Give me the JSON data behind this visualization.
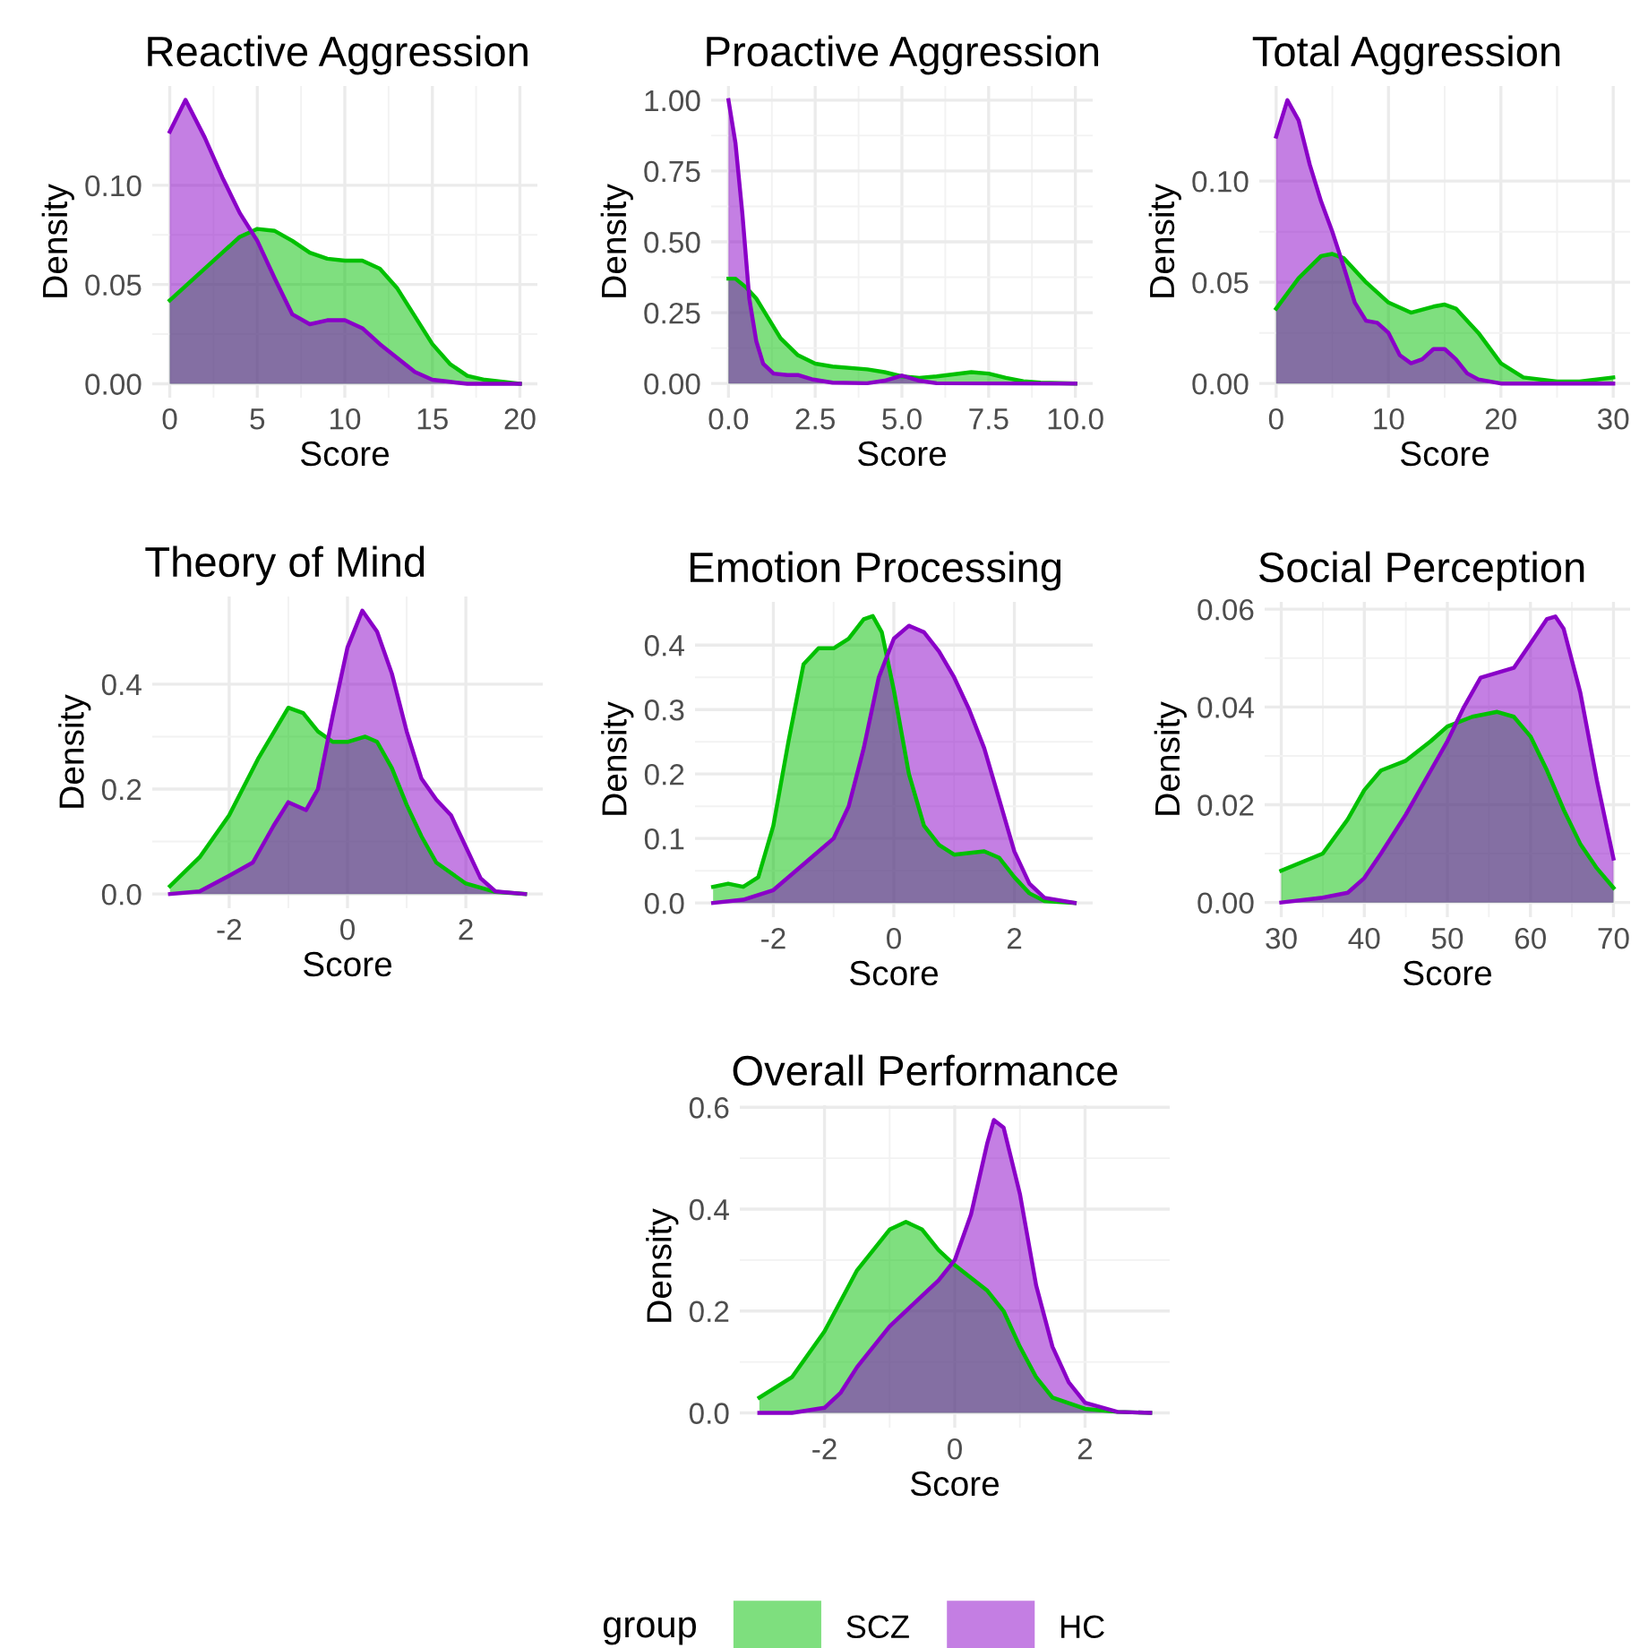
{
  "chart_data": [
    {
      "type": "area",
      "title": "Reactive Aggression",
      "xlabel": "Score",
      "ylabel": "Density",
      "xlim": [
        -1,
        21
      ],
      "xticks": [
        0,
        5,
        10,
        15,
        20
      ],
      "ylim": [
        -0.007,
        0.15
      ],
      "yticks": [
        {
          "value": 0,
          "label": "0.00"
        },
        {
          "value": 0.05,
          "label": "0.05"
        },
        {
          "value": 0.1,
          "label": "0.10"
        }
      ],
      "grid": true,
      "series": [
        {
          "color": "#00c000",
          "x": [
            0,
            1,
            2,
            3,
            4,
            5,
            6,
            7,
            8,
            9,
            10,
            11,
            12,
            13,
            14,
            15,
            16,
            17,
            18,
            19,
            20
          ],
          "values": [
            0.042,
            0.05,
            0.058,
            0.066,
            0.074,
            0.078,
            0.077,
            0.072,
            0.066,
            0.063,
            0.062,
            0.062,
            0.058,
            0.048,
            0.034,
            0.02,
            0.01,
            0.004,
            0.002,
            0.001,
            0
          ]
        },
        {
          "color": "#8a00c8",
          "x": [
            0,
            0.9,
            2,
            3,
            4,
            5,
            6,
            7,
            8,
            9,
            10,
            11,
            12,
            13,
            14,
            15,
            16,
            17,
            20
          ],
          "values": [
            0.127,
            0.143,
            0.124,
            0.104,
            0.086,
            0.072,
            0.053,
            0.035,
            0.03,
            0.032,
            0.032,
            0.028,
            0.02,
            0.013,
            0.006,
            0.002,
            0.001,
            0,
            0
          ]
        }
      ]
    },
    {
      "type": "area",
      "title": "Proactive Aggression",
      "xlabel": "Score",
      "ylabel": "Density",
      "xlim": [
        -0.5,
        10.5
      ],
      "xticks": [
        {
          "value": 0,
          "label": "0.0"
        },
        {
          "value": 2.5,
          "label": "2.5"
        },
        {
          "value": 5,
          "label": "5.0"
        },
        {
          "value": 7.5,
          "label": "7.5"
        },
        {
          "value": 10,
          "label": "10.0"
        }
      ],
      "ylim": [
        -0.05,
        1.05
      ],
      "yticks": [
        {
          "value": 0,
          "label": "0.00"
        },
        {
          "value": 0.25,
          "label": "0.25"
        },
        {
          "value": 0.5,
          "label": "0.50"
        },
        {
          "value": 0.75,
          "label": "0.75"
        },
        {
          "value": 1,
          "label": "1.00"
        }
      ],
      "grid": true,
      "series": [
        {
          "color": "#00c000",
          "x": [
            0,
            0.2,
            0.5,
            0.8,
            1.0,
            1.5,
            2.0,
            2.5,
            3,
            4,
            4.5,
            5,
            5.5,
            6,
            7,
            7.5,
            8,
            8.5,
            9,
            10
          ],
          "values": [
            0.37,
            0.37,
            0.34,
            0.3,
            0.26,
            0.16,
            0.1,
            0.07,
            0.06,
            0.05,
            0.04,
            0.025,
            0.02,
            0.025,
            0.04,
            0.035,
            0.02,
            0.008,
            0.003,
            0
          ]
        },
        {
          "color": "#8a00c8",
          "x": [
            0,
            0.2,
            0.4,
            0.6,
            0.8,
            1.0,
            1.3,
            1.7,
            2.0,
            2.4,
            3,
            4,
            4.5,
            5,
            5.5,
            6,
            10
          ],
          "values": [
            1.0,
            0.85,
            0.6,
            0.3,
            0.15,
            0.07,
            0.035,
            0.03,
            0.03,
            0.015,
            0.003,
            0.001,
            0.01,
            0.028,
            0.01,
            0.001,
            0
          ]
        }
      ]
    },
    {
      "type": "area",
      "title": "Total Aggression",
      "xlabel": "Score",
      "ylabel": "Density",
      "xlim": [
        -1.5,
        31.5
      ],
      "xticks": [
        0,
        10,
        20,
        30
      ],
      "ylim": [
        -0.007,
        0.147
      ],
      "yticks": [
        {
          "value": 0,
          "label": "0.00"
        },
        {
          "value": 0.05,
          "label": "0.05"
        },
        {
          "value": 0.1,
          "label": "0.10"
        }
      ],
      "grid": true,
      "series": [
        {
          "color": "#00c000",
          "x": [
            0,
            2,
            4,
            5,
            6,
            8,
            10,
            12,
            14,
            15,
            16,
            18,
            20,
            22,
            25,
            27,
            30
          ],
          "values": [
            0.037,
            0.052,
            0.063,
            0.064,
            0.062,
            0.05,
            0.04,
            0.035,
            0.038,
            0.039,
            0.037,
            0.025,
            0.01,
            0.003,
            0.001,
            0.001,
            0.003
          ]
        },
        {
          "color": "#8a00c8",
          "x": [
            0,
            1,
            2,
            3,
            4,
            5,
            6,
            7,
            8,
            9,
            10,
            11,
            12,
            13,
            14,
            15,
            16,
            17,
            18,
            19,
            20,
            30
          ],
          "values": [
            0.122,
            0.14,
            0.13,
            0.108,
            0.09,
            0.075,
            0.058,
            0.04,
            0.031,
            0.03,
            0.025,
            0.014,
            0.01,
            0.012,
            0.017,
            0.017,
            0.012,
            0.005,
            0.002,
            0.001,
            0,
            0
          ]
        }
      ]
    },
    {
      "type": "area",
      "title": "Theory of Mind",
      "xlabel": "Score",
      "ylabel": "Density",
      "xlim": [
        -3.3,
        3.3
      ],
      "xticks": [
        {
          "value": -2,
          "label": "-2"
        },
        0,
        2
      ],
      "ylim": [
        -0.027,
        0.567
      ],
      "yticks": [
        {
          "value": 0,
          "label": "0.0"
        },
        0.2,
        0.4
      ],
      "grid": true,
      "series": [
        {
          "color": "#00c000",
          "x": [
            -3,
            -2.5,
            -2,
            -1.5,
            -1.0,
            -0.75,
            -0.5,
            -0.25,
            0,
            0.3,
            0.5,
            0.75,
            1,
            1.25,
            1.5,
            2,
            2.5,
            3
          ],
          "values": [
            0.015,
            0.07,
            0.15,
            0.26,
            0.355,
            0.345,
            0.31,
            0.29,
            0.29,
            0.3,
            0.29,
            0.24,
            0.17,
            0.11,
            0.06,
            0.02,
            0.004,
            0
          ]
        },
        {
          "color": "#8a00c8",
          "x": [
            -3,
            -2.5,
            -2,
            -1.6,
            -1.25,
            -1.0,
            -0.7,
            -0.5,
            -0.25,
            0,
            0.25,
            0.5,
            0.75,
            1.0,
            1.25,
            1.5,
            1.75,
            2.0,
            2.25,
            2.5,
            3
          ],
          "values": [
            0,
            0.005,
            0.035,
            0.06,
            0.13,
            0.175,
            0.16,
            0.2,
            0.34,
            0.47,
            0.54,
            0.5,
            0.42,
            0.31,
            0.22,
            0.18,
            0.15,
            0.09,
            0.03,
            0.005,
            0
          ]
        }
      ]
    },
    {
      "type": "area",
      "title": "Emotion Processing",
      "xlabel": "Score",
      "ylabel": "Density",
      "xlim": [
        -3.3,
        3.3
      ],
      "xticks": [
        {
          "value": -2,
          "label": "-2"
        },
        0,
        2
      ],
      "ylim": [
        -0.022,
        0.467
      ],
      "yticks": [
        {
          "value": 0,
          "label": "0.0"
        },
        0.1,
        0.2,
        0.3,
        0.4
      ],
      "grid": true,
      "series": [
        {
          "color": "#00c000",
          "x": [
            -3,
            -2.75,
            -2.5,
            -2.25,
            -2.0,
            -1.75,
            -1.5,
            -1.25,
            -1.0,
            -0.75,
            -0.5,
            -0.35,
            -0.2,
            0,
            0.25,
            0.5,
            0.75,
            1.0,
            1.5,
            1.75,
            2.0,
            2.25,
            2.5,
            3
          ],
          "values": [
            0.025,
            0.03,
            0.025,
            0.04,
            0.12,
            0.25,
            0.37,
            0.395,
            0.395,
            0.41,
            0.44,
            0.445,
            0.42,
            0.33,
            0.2,
            0.12,
            0.09,
            0.075,
            0.08,
            0.07,
            0.04,
            0.015,
            0.003,
            0
          ]
        },
        {
          "color": "#8a00c8",
          "x": [
            -3,
            -2.5,
            -2,
            -1.5,
            -1.0,
            -0.75,
            -0.5,
            -0.25,
            0,
            0.25,
            0.5,
            0.75,
            1.0,
            1.25,
            1.5,
            1.75,
            2.0,
            2.25,
            2.5,
            3
          ],
          "values": [
            0,
            0.005,
            0.02,
            0.06,
            0.1,
            0.15,
            0.24,
            0.35,
            0.41,
            0.43,
            0.42,
            0.39,
            0.35,
            0.3,
            0.24,
            0.16,
            0.08,
            0.03,
            0.008,
            0
          ]
        }
      ]
    },
    {
      "type": "area",
      "title": "Social Perception",
      "xlabel": "Score",
      "ylabel": "Density",
      "xlim": [
        28,
        72
      ],
      "xticks": [
        30,
        40,
        50,
        60,
        70
      ],
      "ylim": [
        -0.003,
        0.0615
      ],
      "yticks": [
        {
          "value": 0,
          "label": "0.00"
        },
        {
          "value": 0.02,
          "label": "0.02"
        },
        {
          "value": 0.04,
          "label": "0.04"
        },
        {
          "value": 0.06,
          "label": "0.06"
        }
      ],
      "grid": true,
      "series": [
        {
          "color": "#00c000",
          "x": [
            30,
            35,
            38,
            40,
            42,
            45,
            48,
            50,
            53,
            56,
            58,
            60,
            62,
            64,
            66,
            68,
            70
          ],
          "values": [
            0.0065,
            0.01,
            0.017,
            0.023,
            0.027,
            0.029,
            0.033,
            0.036,
            0.038,
            0.039,
            0.038,
            0.034,
            0.027,
            0.019,
            0.012,
            0.007,
            0.003
          ]
        },
        {
          "color": "#8a00c8",
          "x": [
            30,
            35,
            38,
            40,
            42,
            45,
            48,
            50,
            52,
            54,
            56,
            58,
            60,
            62,
            63,
            64,
            66,
            68,
            70
          ],
          "values": [
            0,
            0.001,
            0.002,
            0.005,
            0.01,
            0.018,
            0.027,
            0.033,
            0.04,
            0.046,
            0.047,
            0.048,
            0.053,
            0.058,
            0.0585,
            0.056,
            0.043,
            0.025,
            0.009
          ]
        }
      ]
    },
    {
      "type": "area",
      "title": "Overall Performance",
      "xlabel": "Score",
      "ylabel": "Density",
      "xlim": [
        -3.3,
        3.3
      ],
      "xticks": [
        {
          "value": -2,
          "label": "-2"
        },
        0,
        2
      ],
      "ylim": [
        -0.029,
        0.604
      ],
      "yticks": [
        {
          "value": 0,
          "label": "0.0"
        },
        0.2,
        0.4,
        0.6
      ],
      "grid": true,
      "legend": "bottom",
      "legend_title": "group",
      "series": [
        {
          "name": "SCZ",
          "color": "#00c000",
          "x": [
            -3,
            -2.5,
            -2,
            -1.5,
            -1.0,
            -0.75,
            -0.5,
            -0.25,
            0,
            0.25,
            0.5,
            0.75,
            1.0,
            1.25,
            1.5,
            2.0,
            2.5,
            3
          ],
          "values": [
            0.03,
            0.07,
            0.16,
            0.28,
            0.36,
            0.375,
            0.36,
            0.32,
            0.29,
            0.265,
            0.24,
            0.2,
            0.13,
            0.07,
            0.03,
            0.008,
            0.002,
            0
          ]
        },
        {
          "name": "HC",
          "color": "#8a00c8",
          "x": [
            -3,
            -2.5,
            -2,
            -1.75,
            -1.5,
            -1.0,
            -0.5,
            -0.25,
            0,
            0.25,
            0.5,
            0.6,
            0.75,
            1.0,
            1.25,
            1.5,
            1.75,
            2.0,
            2.5,
            3
          ],
          "values": [
            0,
            0,
            0.01,
            0.04,
            0.09,
            0.17,
            0.23,
            0.26,
            0.3,
            0.39,
            0.53,
            0.575,
            0.56,
            0.43,
            0.25,
            0.13,
            0.06,
            0.02,
            0.002,
            0
          ]
        }
      ]
    }
  ]
}
